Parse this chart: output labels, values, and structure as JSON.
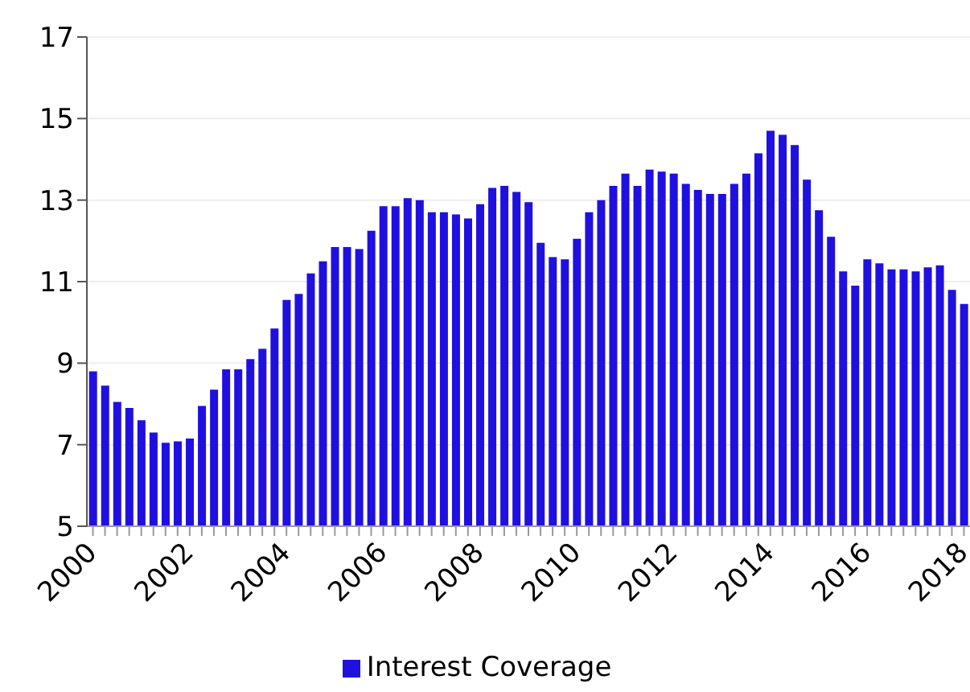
{
  "chart_data": {
    "type": "bar",
    "categories": [
      "2000",
      null,
      null,
      null,
      null,
      null,
      null,
      null,
      "2002",
      null,
      null,
      null,
      null,
      null,
      null,
      null,
      "2004",
      null,
      null,
      null,
      null,
      null,
      null,
      null,
      "2006",
      null,
      null,
      null,
      null,
      null,
      null,
      null,
      "2008",
      null,
      null,
      null,
      null,
      null,
      null,
      null,
      "2010",
      null,
      null,
      null,
      null,
      null,
      null,
      null,
      "2012",
      null,
      null,
      null,
      null,
      null,
      null,
      null,
      "2014",
      null,
      null,
      null,
      null,
      null,
      null,
      null,
      "2016",
      null,
      null,
      null,
      null,
      null,
      null,
      null,
      "2018"
    ],
    "series": [
      {
        "name": "Interest Coverage",
        "color": "#1f10e0",
        "values": [
          8.8,
          8.45,
          8.05,
          7.9,
          7.6,
          7.3,
          7.05,
          7.08,
          7.15,
          7.95,
          8.35,
          8.85,
          8.85,
          9.1,
          9.35,
          9.85,
          10.55,
          10.7,
          11.2,
          11.5,
          11.85,
          11.85,
          11.8,
          12.25,
          12.85,
          12.85,
          13.05,
          13.0,
          12.7,
          12.7,
          12.65,
          12.55,
          12.9,
          13.3,
          13.35,
          13.2,
          12.95,
          11.95,
          11.6,
          11.55,
          12.05,
          12.7,
          13.0,
          13.35,
          13.65,
          13.35,
          13.75,
          13.7,
          13.65,
          13.4,
          13.25,
          13.15,
          13.15,
          13.4,
          13.65,
          14.15,
          14.7,
          14.6,
          14.35,
          13.5,
          12.75,
          12.1,
          11.25,
          10.9,
          11.55,
          11.45,
          11.3,
          11.3,
          11.25,
          11.35,
          11.4,
          10.8,
          10.45
        ]
      }
    ],
    "ylim": [
      5,
      17
    ],
    "yticks": [
      5,
      7,
      9,
      11,
      13,
      15,
      17
    ],
    "grid": "y",
    "legend": "bottom"
  }
}
